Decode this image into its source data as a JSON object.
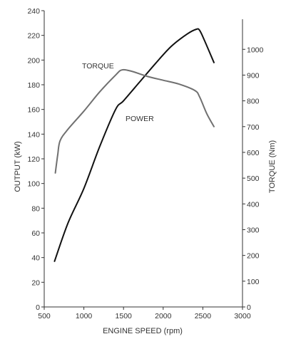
{
  "chart_data": {
    "type": "line",
    "xlabel": "ENGINE SPEED (rpm)",
    "ylabel_left": "OUTPUT (kW)",
    "ylabel_right": "TORQUE (Nm)",
    "xlim": [
      500,
      3000
    ],
    "ylim_left": [
      0,
      240
    ],
    "ylim_right": [
      0,
      1150
    ],
    "x_ticks": [
      500,
      1000,
      1500,
      2000,
      2500,
      3000
    ],
    "y_left_ticks": [
      0,
      20,
      40,
      60,
      80,
      100,
      120,
      140,
      160,
      180,
      200,
      220,
      240
    ],
    "y_right_ticks": [
      0,
      100,
      200,
      300,
      400,
      500,
      600,
      700,
      800,
      900,
      1000
    ],
    "series": [
      {
        "name": "POWER",
        "axis": "left",
        "color": "#111111",
        "x": [
          630,
          800,
          1000,
          1200,
          1400,
          1500,
          1700,
          1900,
          2100,
          2300,
          2420,
          2460,
          2520,
          2640
        ],
        "y": [
          37,
          68,
          96,
          130,
          160,
          167,
          182,
          197,
          211,
          221,
          225,
          224,
          216,
          198
        ]
      },
      {
        "name": "TORQUE",
        "axis": "right",
        "color": "#707070",
        "x": [
          640,
          670,
          700,
          800,
          1000,
          1200,
          1400,
          1480,
          1600,
          1800,
          2000,
          2200,
          2400,
          2460,
          2550,
          2640
        ],
        "y": [
          520,
          590,
          645,
          690,
          760,
          835,
          900,
          920,
          915,
          895,
          880,
          865,
          840,
          815,
          750,
          700
        ]
      }
    ]
  }
}
